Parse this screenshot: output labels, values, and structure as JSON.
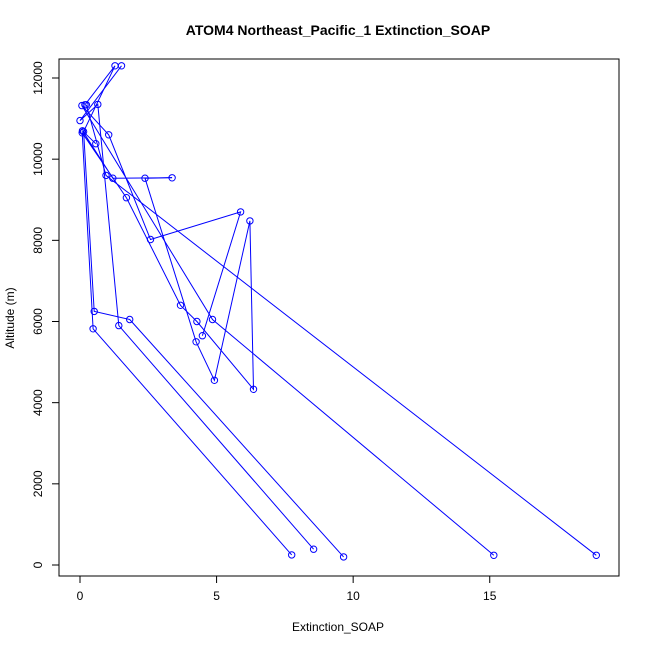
{
  "chart_data": {
    "type": "line",
    "title": "ATOM4 Northeast_Pacific_1 Extinction_SOAP",
    "xlabel": "Extinction_SOAP",
    "ylabel": "Altitude (m)",
    "xlim": [
      0,
      19
    ],
    "ylim": [
      0,
      12300
    ],
    "xticks": [
      0,
      5,
      10,
      15
    ],
    "yticks": [
      0,
      2000,
      4000,
      6000,
      8000,
      10000,
      12000
    ],
    "grid": false,
    "legend": "none",
    "colors": {
      "series": "#0000ff"
    },
    "series": [
      {
        "x": [
          7.75,
          0.48,
          0.08,
          1.7,
          3.68,
          4.28,
          6.35,
          6.22,
          4.92,
          4.25,
          2.38,
          3.37,
          1.2,
          0.09,
          0.58
        ],
        "y": [
          250,
          5820,
          10650,
          9050,
          6400,
          6000,
          4330,
          8480,
          4550,
          5500,
          9530,
          9540,
          9530,
          10700,
          10380
        ]
      },
      {
        "x": [
          9.65,
          1.82,
          0.52,
          0.13,
          1.28,
          0.18
        ],
        "y": [
          200,
          6050,
          6250,
          10680,
          12300,
          11340
        ]
      },
      {
        "x": [
          8.55,
          1.42,
          0.65,
          0.0,
          1.52
        ],
        "y": [
          390,
          5900,
          11350,
          10950,
          12300
        ]
      },
      {
        "x": [
          15.15,
          4.85,
          0.07,
          1.05,
          2.58,
          5.88,
          4.48
        ],
        "y": [
          240,
          6050,
          11320,
          10600,
          8020,
          8700,
          5650
        ]
      },
      {
        "x": [
          18.9,
          0.95,
          0.23
        ],
        "y": [
          240,
          9600,
          11340
        ]
      }
    ]
  }
}
